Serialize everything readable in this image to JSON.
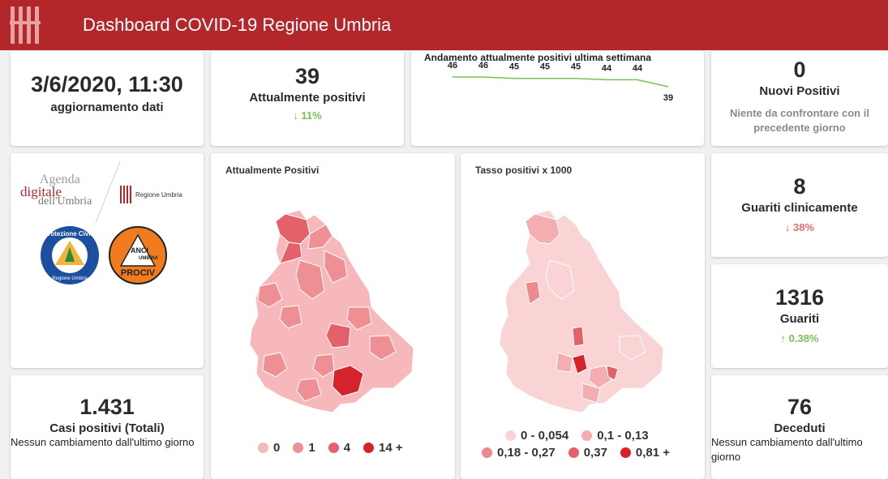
{
  "header": {
    "title": "Dashboard COVID-19 Regione Umbria"
  },
  "update": {
    "datetime": "3/6/2020, 11:30",
    "label": "aggiornamento dati"
  },
  "positivi": {
    "value": "39",
    "label": "Attualmente positivi",
    "delta": "11%"
  },
  "trend": {
    "title": "Andamento attualmente positivi ultima settimana",
    "values": [
      46,
      46,
      45,
      45,
      45,
      44,
      44,
      39
    ],
    "labels": [
      "46",
      "46",
      "45",
      "45",
      "45",
      "44",
      "44",
      "39"
    ]
  },
  "nuovi": {
    "value": "0",
    "label": "Nuovi Positivi",
    "note": "Niente da confrontare con il precedente giorno"
  },
  "logos": {
    "agenda": [
      "Agenda",
      "digitale",
      "dell'Umbria"
    ],
    "regione": "Regione Umbria",
    "protezione": "Protezione Civile",
    "protezione_sub": "Regione Umbria",
    "anci": "ANCI",
    "anci_umbria": "UMBRIA",
    "prociv": "PROCIV"
  },
  "map1": {
    "title": "Attualmente Positivi",
    "legend": [
      {
        "label": "0",
        "color": "#f6b8ba"
      },
      {
        "label": "1",
        "color": "#ee8f93"
      },
      {
        "label": "4",
        "color": "#e4606a"
      },
      {
        "label": "14 +",
        "color": "#d6232b"
      }
    ]
  },
  "map2": {
    "title": "Tasso positivi x 1000",
    "legend": [
      {
        "label": "0 - 0,054",
        "color": "#fad3d4"
      },
      {
        "label": "0,1 - 0,13",
        "color": "#f4aeb1"
      },
      {
        "label": "0,18 - 0,27",
        "color": "#ec8a90"
      },
      {
        "label": "0,37",
        "color": "#e2626a"
      },
      {
        "label": "0,81 +",
        "color": "#d6232b"
      }
    ]
  },
  "guariti_clin": {
    "value": "8",
    "label": "Guariti clinicamente",
    "delta": "38%"
  },
  "guariti": {
    "value": "1316",
    "label": "Guariti",
    "delta": "0.38%"
  },
  "casi": {
    "value": "1.431",
    "label": "Casi positivi (Totali)",
    "note": "Nessun cambiamento dall'ultimo giorno"
  },
  "deceduti": {
    "value": "76",
    "label": "Deceduti",
    "note": "Nessun cambiamento dall'ultimo giorno"
  },
  "colors": {
    "header": "#b3272b",
    "green": "#7cbf55",
    "red": "#e07070"
  }
}
